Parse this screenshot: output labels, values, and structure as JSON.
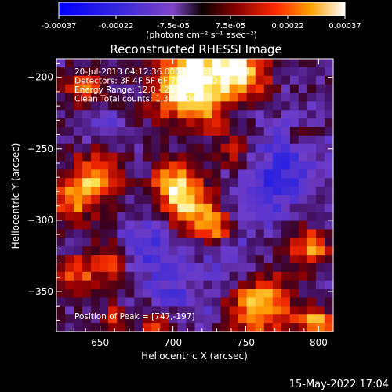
{
  "chart_data": {
    "type": "heatmap",
    "title": "Reconstructed RHESSI Image",
    "xlabel": "Heliocentric X (arcsec)",
    "ylabel": "Heliocentric Y (arcsec)",
    "xlim": [
      620,
      810
    ],
    "ylim": [
      -378,
      -187
    ],
    "x_ticks": [
      650,
      700,
      750,
      800
    ],
    "y_ticks": [
      -200,
      -250,
      -300,
      -350
    ],
    "colorbar": {
      "ticks": [
        "-0.00037",
        "-0.00022",
        "-7.5e-05",
        "7.5e-05",
        "0.00022",
        "0.00037"
      ],
      "range": [
        -0.00037,
        0.00037
      ],
      "unit": "(photons cm⁻² s⁻¹ asec⁻²)"
    },
    "annotations": [
      "20-Jul-2013 04:12:36.000 to 04:13:24.000",
      "Detectors: 3F 4F 5F 6F 7F 8F, All D",
      "Energy Range: 12.0 - 25.0 keV",
      "Clean     Total counts: 1.32E+04"
    ],
    "peak_label": "Position of Peak = [747,-197]",
    "grid_shape": [
      32,
      32
    ],
    "hotspots": [
      {
        "x": 720,
        "y": -195,
        "r": 26,
        "v": 0.95
      },
      {
        "x": 705,
        "y": -212,
        "r": 20,
        "v": 0.7
      },
      {
        "x": 748,
        "y": -198,
        "r": 16,
        "v": 0.85
      },
      {
        "x": 640,
        "y": -208,
        "r": 14,
        "v": 0.6
      },
      {
        "x": 648,
        "y": -268,
        "r": 18,
        "v": 0.7
      },
      {
        "x": 633,
        "y": -285,
        "r": 16,
        "v": 0.65
      },
      {
        "x": 710,
        "y": -290,
        "r": 18,
        "v": 0.9
      },
      {
        "x": 700,
        "y": -272,
        "r": 14,
        "v": 0.7
      },
      {
        "x": 728,
        "y": -305,
        "r": 12,
        "v": 0.7
      },
      {
        "x": 742,
        "y": -252,
        "r": 11,
        "v": 0.45
      },
      {
        "x": 655,
        "y": -330,
        "r": 14,
        "v": 0.6
      },
      {
        "x": 632,
        "y": -338,
        "r": 13,
        "v": 0.6
      },
      {
        "x": 760,
        "y": -360,
        "r": 22,
        "v": 0.9
      },
      {
        "x": 795,
        "y": -320,
        "r": 14,
        "v": 0.7
      },
      {
        "x": 798,
        "y": -372,
        "r": 12,
        "v": 0.8
      },
      {
        "x": 660,
        "y": -368,
        "r": 10,
        "v": 0.45
      },
      {
        "x": 690,
        "y": -378,
        "r": 12,
        "v": 0.55
      },
      {
        "x": 790,
        "y": -242,
        "r": 10,
        "v": 0.4
      },
      {
        "x": 728,
        "y": -230,
        "r": 9,
        "v": 0.45
      }
    ],
    "coldspots": [
      {
        "x": 780,
        "y": -260,
        "r": 26,
        "v": -0.45
      },
      {
        "x": 760,
        "y": -285,
        "r": 18,
        "v": -0.35
      },
      {
        "x": 685,
        "y": -320,
        "r": 22,
        "v": -0.4
      },
      {
        "x": 740,
        "y": -330,
        "r": 18,
        "v": -0.35
      },
      {
        "x": 650,
        "y": -235,
        "r": 14,
        "v": -0.3
      },
      {
        "x": 700,
        "y": -350,
        "r": 14,
        "v": -0.3
      },
      {
        "x": 720,
        "y": -365,
        "r": 10,
        "v": -0.25
      }
    ]
  },
  "footer": {
    "timestamp": "15-May-2022 17:04"
  }
}
